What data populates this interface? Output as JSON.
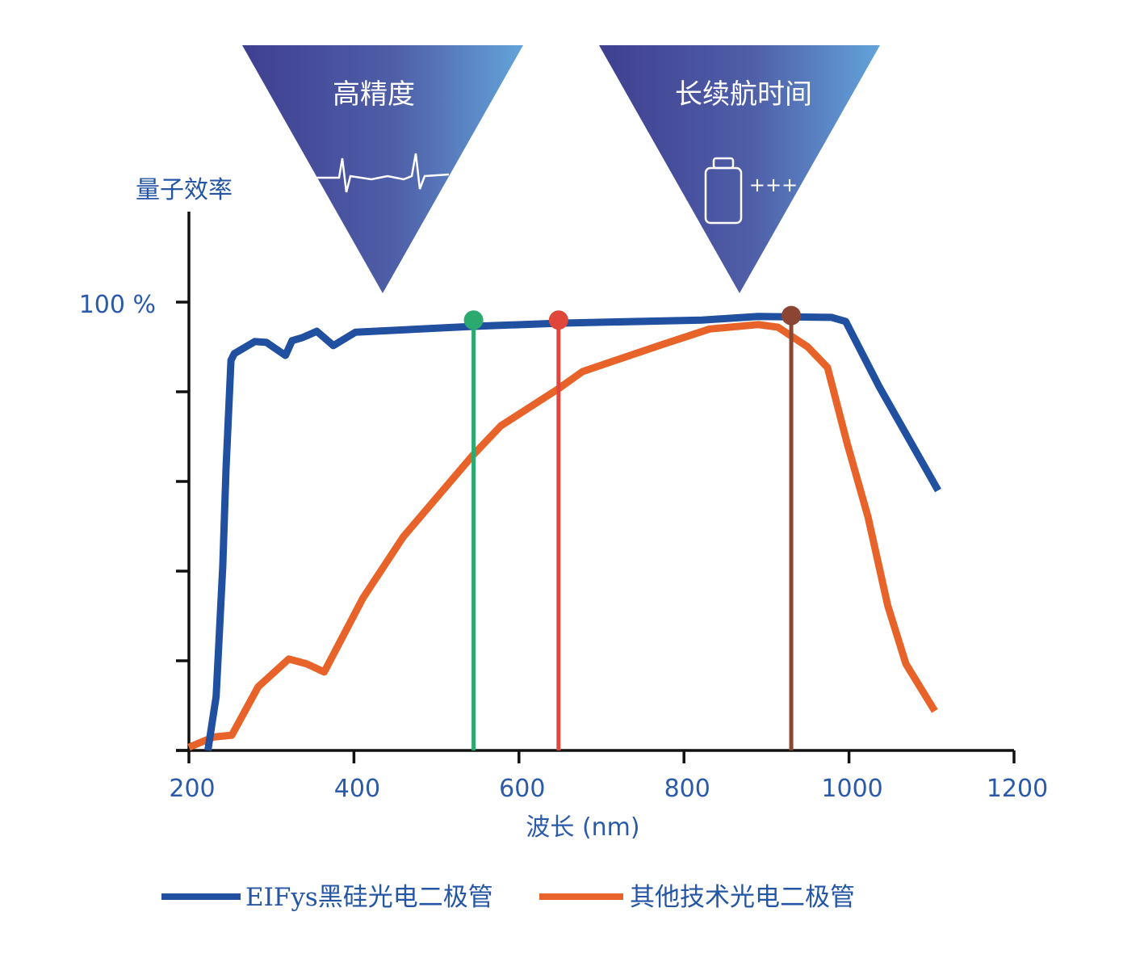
{
  "chart_data": {
    "type": "line",
    "title": "",
    "xlabel": "波长 (nm)",
    "ylabel": "量子效率",
    "xlim": [
      200,
      1200
    ],
    "ylim": [
      0,
      100
    ],
    "x_ticks": [
      200,
      400,
      600,
      800,
      1000,
      1200
    ],
    "x_tick_labels": [
      "200",
      "400",
      "600",
      "800",
      "1000",
      "1200"
    ],
    "y_ticks": [
      0,
      20,
      40,
      60,
      80,
      100
    ],
    "y_tick_label": "100 %",
    "grid": false,
    "legend_position": "bottom",
    "series": [
      {
        "name": "EIFys黑硅光电二极管",
        "color": "#2150a0",
        "points": [
          [
            223,
            0
          ],
          [
            233,
            12
          ],
          [
            241,
            41
          ],
          [
            245,
            63
          ],
          [
            251,
            87
          ],
          [
            255,
            88.5
          ],
          [
            280,
            91.2
          ],
          [
            294,
            91
          ],
          [
            317,
            88.1
          ],
          [
            325,
            91.4
          ],
          [
            338,
            92.1
          ],
          [
            355,
            93.5
          ],
          [
            375,
            90.3
          ],
          [
            402,
            93.3
          ],
          [
            545,
            94.6
          ],
          [
            648,
            95.3
          ],
          [
            822,
            96
          ],
          [
            890,
            96.8
          ],
          [
            979,
            96.6
          ],
          [
            996,
            95.7
          ],
          [
            1037,
            81
          ],
          [
            1108,
            58
          ]
        ]
      },
      {
        "name": "其他技术光电二极管",
        "color": "#e8632a",
        "points": [
          [
            200,
            0.7
          ],
          [
            230,
            3
          ],
          [
            252,
            3.4
          ],
          [
            284,
            14.2
          ],
          [
            321,
            20.4
          ],
          [
            343,
            19.3
          ],
          [
            364,
            17.5
          ],
          [
            411,
            34
          ],
          [
            460,
            47.7
          ],
          [
            543,
            65.6
          ],
          [
            578,
            72.4
          ],
          [
            648,
            80.7
          ],
          [
            677,
            84.5
          ],
          [
            773,
            90.5
          ],
          [
            831,
            94
          ],
          [
            890,
            95
          ],
          [
            914,
            94.4
          ],
          [
            950,
            90
          ],
          [
            974,
            85.4
          ],
          [
            998,
            68.3
          ],
          [
            1023,
            52.1
          ],
          [
            1047,
            32.3
          ],
          [
            1069,
            19.3
          ],
          [
            1104,
            8.8
          ]
        ]
      }
    ],
    "markers": [
      {
        "x": 545,
        "y": 96,
        "color": "#2aaa6e"
      },
      {
        "x": 648,
        "y": 96,
        "color": "#e0463a"
      },
      {
        "x": 930,
        "y": 97,
        "color": "#8a4632"
      }
    ],
    "annotations": [
      {
        "label": "高精度",
        "icon": "heartbeat-icon"
      },
      {
        "label": "长续航时间",
        "icon": "battery-icon",
        "icon_text": "+++"
      }
    ]
  }
}
